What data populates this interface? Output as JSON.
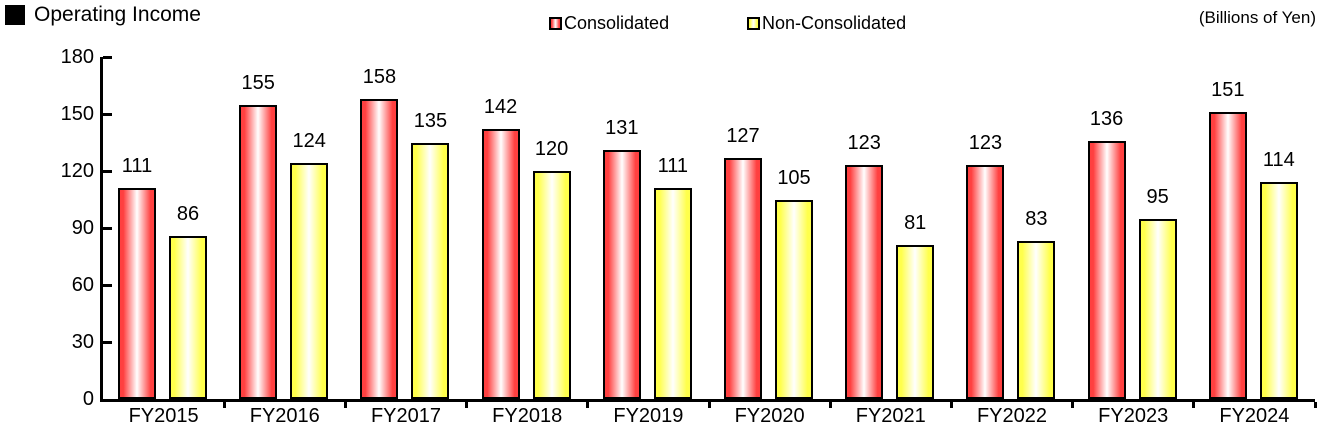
{
  "title": "Operating Income",
  "unit_label": "(Billions of Yen)",
  "chart_data": {
    "type": "bar",
    "title": "Operating Income",
    "unit": "Billions of Yen",
    "categories": [
      "FY2015",
      "FY2016",
      "FY2017",
      "FY2018",
      "FY2019",
      "FY2020",
      "FY2021",
      "FY2022",
      "FY2023",
      "FY2024"
    ],
    "series": [
      {
        "name": "Consolidated",
        "color": "#FF4040",
        "fill": "horizontal-gradient-white-center",
        "values": [
          111,
          155,
          158,
          142,
          131,
          127,
          123,
          123,
          136,
          151
        ]
      },
      {
        "name": "Non-Consolidated",
        "color": "#FFFF4C",
        "fill": "horizontal-gradient-white-center",
        "values": [
          86,
          124,
          135,
          120,
          111,
          105,
          81,
          83,
          95,
          114
        ]
      }
    ],
    "ylim": [
      0,
      180
    ],
    "yticks": [
      0,
      30,
      60,
      90,
      120,
      150,
      180
    ],
    "grid": false,
    "legend_position": "top-center",
    "bar_border_color": "#000000",
    "data_labels": true
  }
}
